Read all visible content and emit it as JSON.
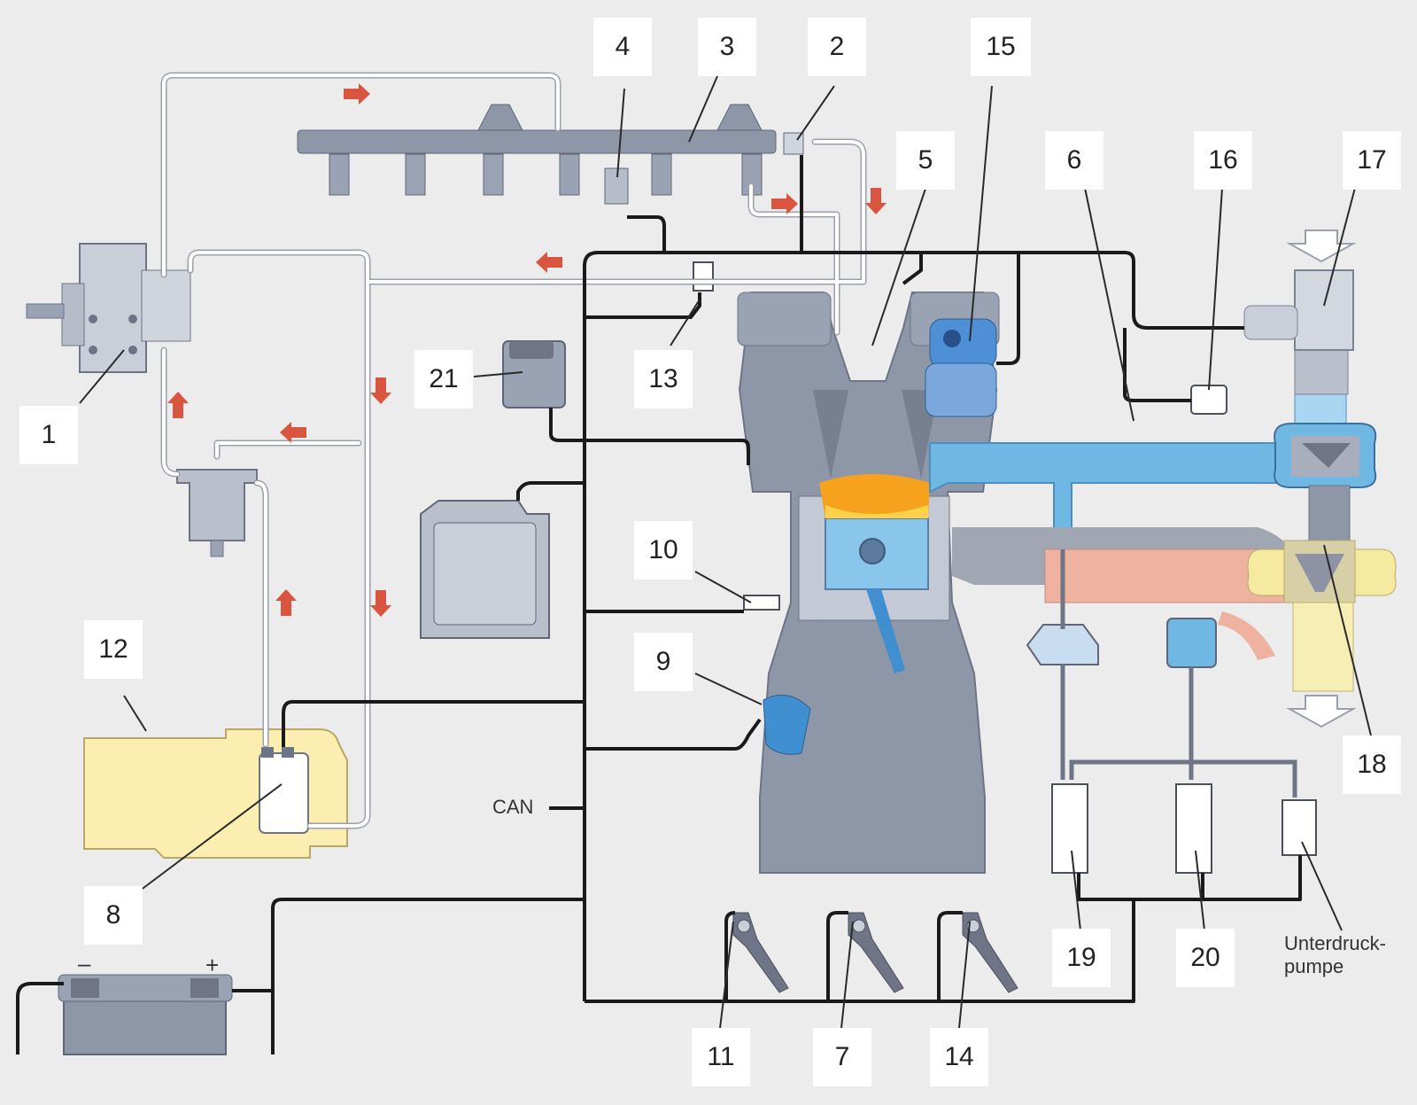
{
  "callouts": {
    "c1": "1",
    "c2": "2",
    "c3": "3",
    "c4": "4",
    "c5": "5",
    "c6": "6",
    "c7": "7",
    "c8": "8",
    "c9": "9",
    "c10": "10",
    "c11": "11",
    "c12": "12",
    "c13": "13",
    "c14": "14",
    "c15": "15",
    "c16": "16",
    "c17": "17",
    "c18": "18",
    "c19": "19",
    "c20": "20",
    "c21": "21"
  },
  "labels": {
    "can": "CAN",
    "vacuum_pump_line1": "Unterdruck-",
    "vacuum_pump_line2": "pumpe",
    "battery_minus": "–",
    "battery_plus": "+"
  },
  "colors": {
    "background": "#ececec",
    "fuel_line": "#ffffff",
    "wire": "#1a1a1a",
    "arrow": "#d9553f",
    "engine": "#8e97a8",
    "intake_air": "#6eb8e3",
    "exhaust": "#efb1a0",
    "fuel_tank": "#fbeeb0",
    "combustion": "#f6a21e"
  }
}
